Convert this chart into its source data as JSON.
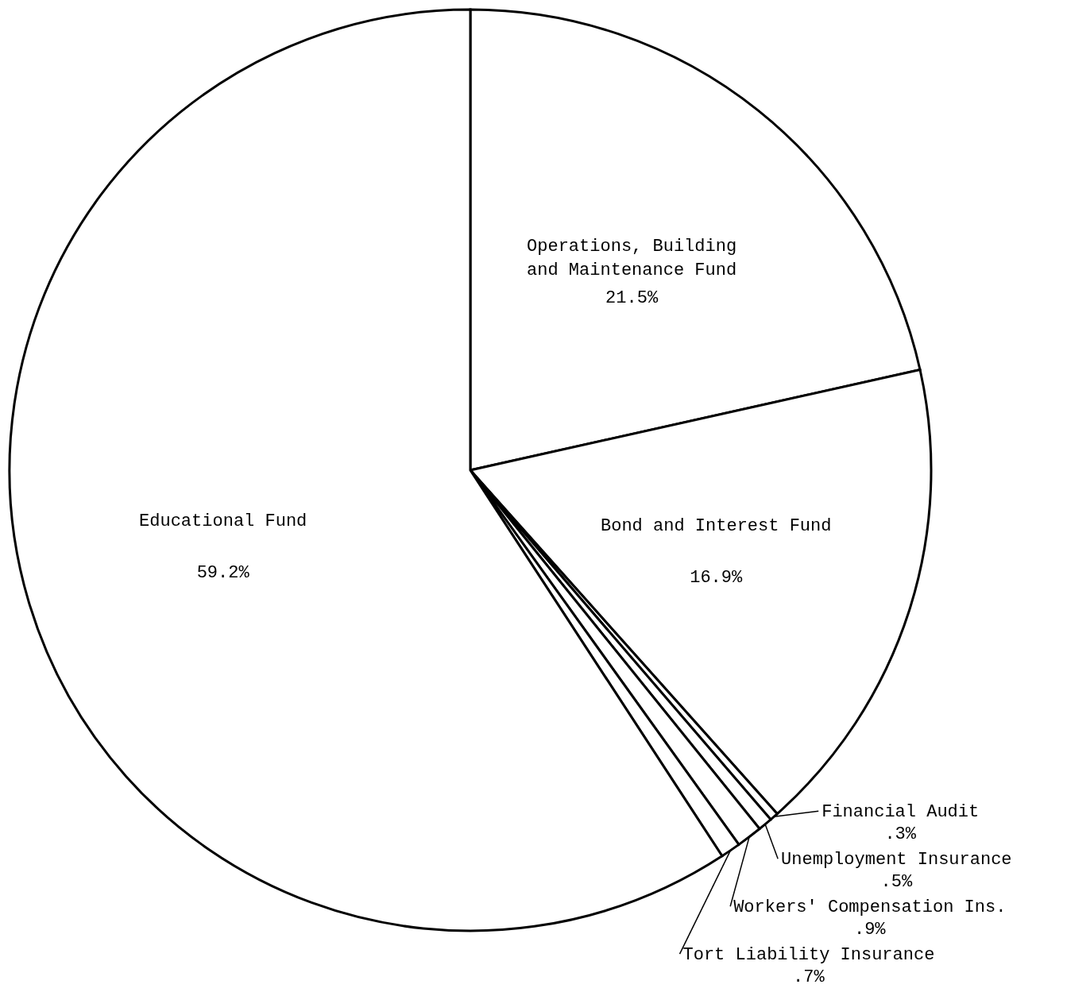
{
  "chart_data": {
    "type": "pie",
    "categories": [
      "Operations, Building\nand Maintenance Fund",
      "Bond and Interest Fund",
      "Financial Audit",
      "Unemployment Insurance",
      "Workers' Compensation Ins.",
      "Tort Liability Insurance",
      "Educational Fund"
    ],
    "values": [
      21.5,
      16.9,
      0.3,
      0.5,
      0.9,
      0.7,
      59.2
    ],
    "value_labels": [
      "21.5%",
      "16.9%",
      ".3%",
      ".5%",
      ".9%",
      ".7%",
      "59.2%"
    ],
    "colors": [
      "#ffffff",
      "#ffffff",
      "#ffffff",
      "#ffffff",
      "#ffffff",
      "#ffffff",
      "#ffffff"
    ]
  }
}
